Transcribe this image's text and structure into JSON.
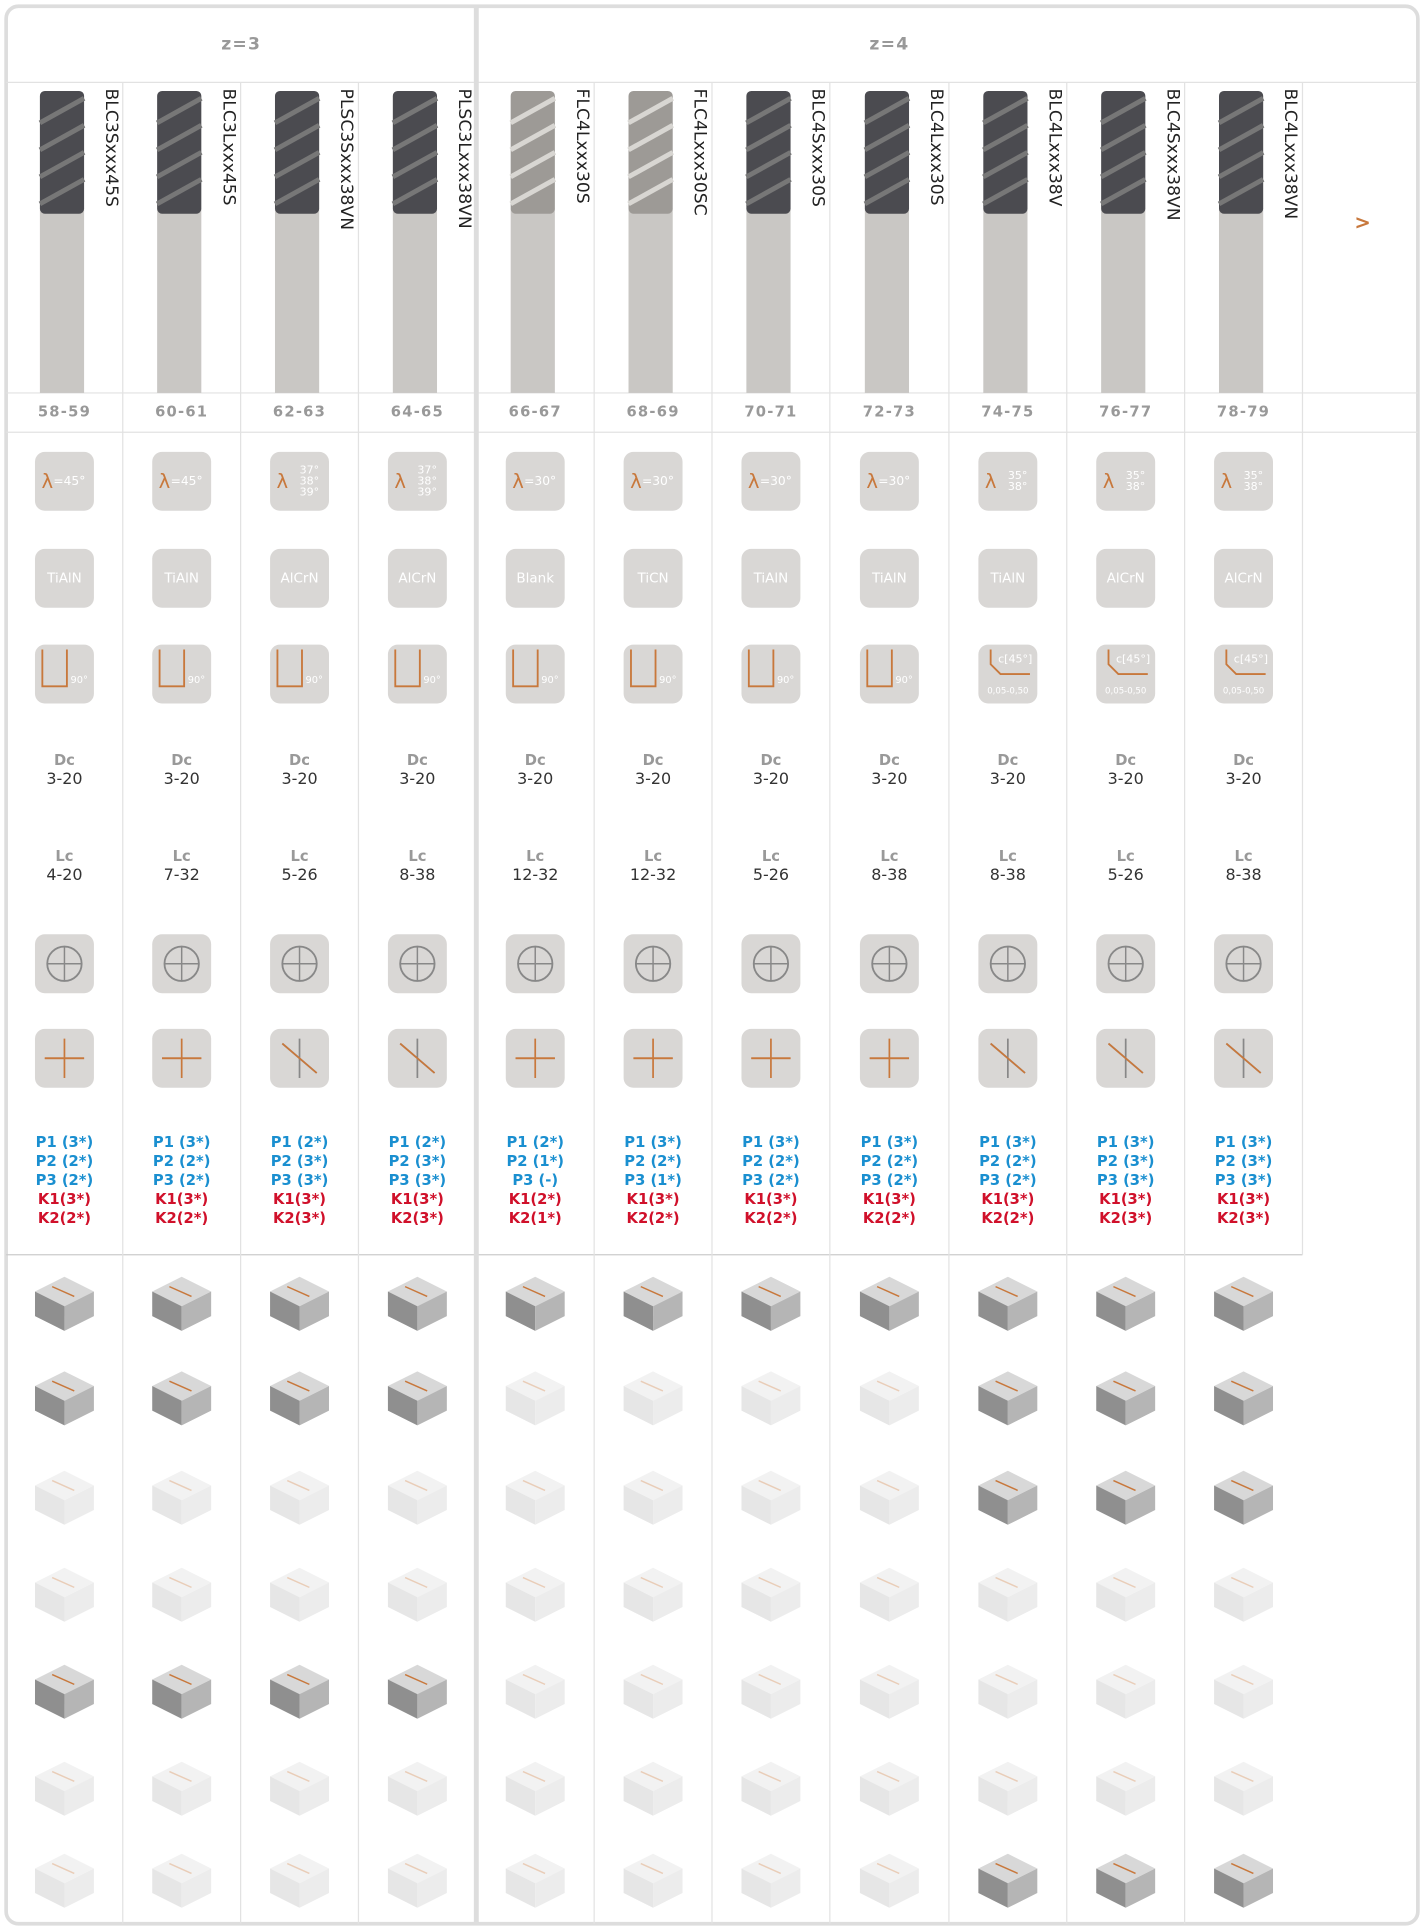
{
  "groups": [
    {
      "label": "z=3",
      "tools": [
        {
          "name": "BLC3Sxxx45S",
          "pages": "58-59",
          "lambda": {
            "symbol": "λ",
            "angles": [
              "=45°"
            ]
          },
          "coating": "TiAlN",
          "corner": {
            "angle": "90°"
          },
          "dc_label": "Dc",
          "dc": "3-20",
          "lc_label": "Lc",
          "lc": "4-20",
          "materials": [
            "P1 (3*)",
            "P2 (2*)",
            "P3 (2*)",
            "K1(3*)",
            "K2(2*)"
          ]
        },
        {
          "name": "BLC3Lxxx45S",
          "pages": "60-61",
          "lambda": {
            "symbol": "λ",
            "angles": [
              "=45°"
            ]
          },
          "coating": "TiAlN",
          "corner": {
            "angle": "90°"
          },
          "dc_label": "Dc",
          "dc": "3-20",
          "lc_label": "Lc",
          "lc": "7-32",
          "materials": [
            "P1 (3*)",
            "P2 (2*)",
            "P3 (2*)",
            "K1(3*)",
            "K2(2*)"
          ]
        },
        {
          "name": "PLSC3Sxxx38VN",
          "pages": "62-63",
          "lambda": {
            "symbol": "λ",
            "angles": [
              "37°",
              "38°",
              "39°"
            ]
          },
          "coating": "AlCrN",
          "corner": {
            "angle": "90°"
          },
          "dc_label": "Dc",
          "dc": "3-20",
          "lc_label": "Lc",
          "lc": "5-26",
          "materials": [
            "P1 (2*)",
            "P2 (3*)",
            "P3 (3*)",
            "K1(3*)",
            "K2(3*)"
          ]
        },
        {
          "name": "PLSC3Lxxx38VN",
          "pages": "64-65",
          "lambda": {
            "symbol": "λ",
            "angles": [
              "37°",
              "38°",
              "39°"
            ]
          },
          "coating": "AlCrN",
          "corner": {
            "angle": "90°"
          },
          "dc_label": "Dc",
          "dc": "3-20",
          "lc_label": "Lc",
          "lc": "8-38",
          "materials": [
            "P1 (2*)",
            "P2 (3*)",
            "P3 (3*)",
            "K1(3*)",
            "K2(3*)"
          ]
        }
      ]
    },
    {
      "label": "z=4",
      "tools": [
        {
          "name": "FLC4Lxxx30S",
          "pages": "66-67",
          "lambda": {
            "symbol": "λ",
            "angles": [
              "=30°"
            ]
          },
          "coating": "Blank",
          "corner": {
            "angle": "90°"
          },
          "dc_label": "Dc",
          "dc": "3-20",
          "lc_label": "Lc",
          "lc": "12-32",
          "materials": [
            "P1 (2*)",
            "P2 (1*)",
            "P3 (-)",
            "K1(2*)",
            "K2(1*)"
          ]
        },
        {
          "name": "FLC4Lxxx30SC",
          "pages": "68-69",
          "lambda": {
            "symbol": "λ",
            "angles": [
              "=30°"
            ]
          },
          "coating": "TiCN",
          "corner": {
            "angle": "90°"
          },
          "dc_label": "Dc",
          "dc": "3-20",
          "lc_label": "Lc",
          "lc": "12-32",
          "materials": [
            "P1 (3*)",
            "P2 (2*)",
            "P3 (1*)",
            "K1(3*)",
            "K2(2*)"
          ]
        },
        {
          "name": "BLC4Sxxx30S",
          "pages": "70-71",
          "lambda": {
            "symbol": "λ",
            "angles": [
              "=30°"
            ]
          },
          "coating": "TiAlN",
          "corner": {
            "angle": "90°"
          },
          "dc_label": "Dc",
          "dc": "3-20",
          "lc_label": "Lc",
          "lc": "5-26",
          "materials": [
            "P1 (3*)",
            "P2 (2*)",
            "P3 (2*)",
            "K1(3*)",
            "K2(2*)"
          ]
        },
        {
          "name": "BLC4Lxxx30S",
          "pages": "72-73",
          "lambda": {
            "symbol": "λ",
            "angles": [
              "=30°"
            ]
          },
          "coating": "TiAlN",
          "corner": {
            "angle": "90°"
          },
          "dc_label": "Dc",
          "dc": "3-20",
          "lc_label": "Lc",
          "lc": "8-38",
          "materials": [
            "P1 (3*)",
            "P2 (2*)",
            "P3 (2*)",
            "K1(3*)",
            "K2(2*)"
          ]
        },
        {
          "name": "BLC4Lxxx38V",
          "pages": "74-75",
          "lambda": {
            "symbol": "λ",
            "angles": [
              "35°",
              "38°"
            ]
          },
          "coating": "TiAlN",
          "corner": {
            "chamfer": "c[45°]",
            "range": "0,05-0,50"
          },
          "dc_label": "Dc",
          "dc": "3-20",
          "lc_label": "Lc",
          "lc": "8-38",
          "materials": [
            "P1 (3*)",
            "P2 (2*)",
            "P3 (2*)",
            "K1(3*)",
            "K2(2*)"
          ]
        },
        {
          "name": "BLC4Sxxx38VN",
          "pages": "76-77",
          "lambda": {
            "symbol": "λ",
            "angles": [
              "35°",
              "38°"
            ]
          },
          "coating": "AlCrN",
          "corner": {
            "chamfer": "c[45°]",
            "range": "0,05-0,50"
          },
          "dc_label": "Dc",
          "dc": "3-20",
          "lc_label": "Lc",
          "lc": "5-26",
          "materials": [
            "P1 (3*)",
            "P2 (3*)",
            "P3 (3*)",
            "K1(3*)",
            "K2(3*)"
          ]
        },
        {
          "name": "BLC4Lxxx38VN",
          "pages": "78-79",
          "lambda": {
            "symbol": "λ",
            "angles": [
              "35°",
              "38°"
            ]
          },
          "coating": "AlCrN",
          "corner": {
            "chamfer": "c[45°]",
            "range": "0,05-0,50"
          },
          "dc_label": "Dc",
          "dc": "3-20",
          "lc_label": "Lc",
          "lc": "8-38",
          "materials": [
            "P1 (3*)",
            "P2 (3*)",
            "P3 (3*)",
            "K1(3*)",
            "K2(3*)"
          ]
        }
      ]
    }
  ],
  "next": ">"
}
